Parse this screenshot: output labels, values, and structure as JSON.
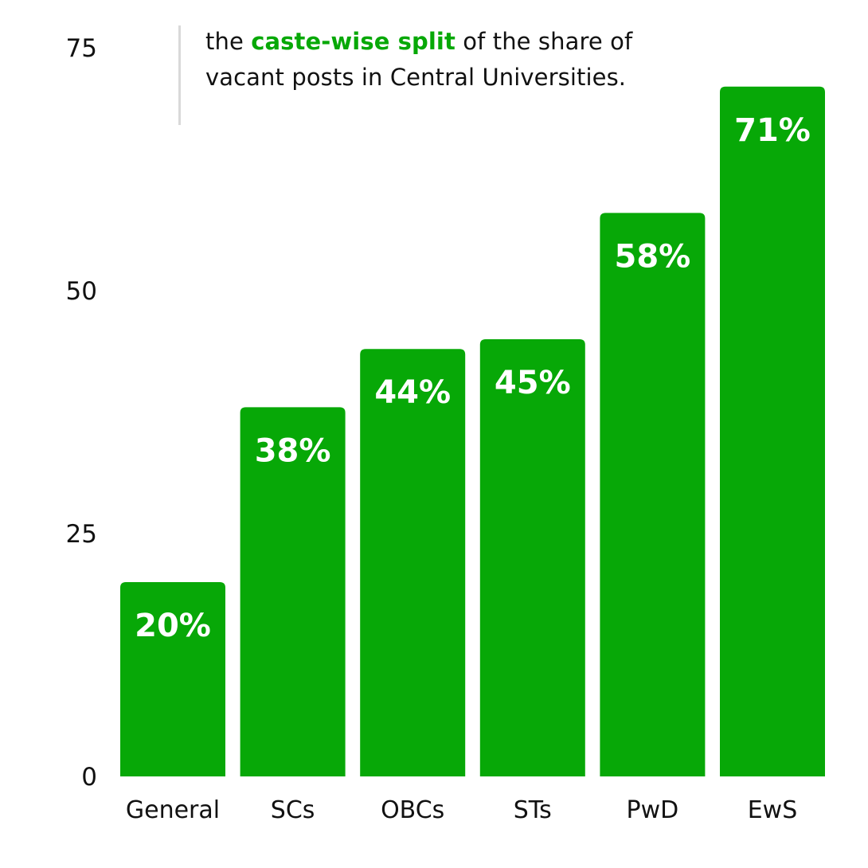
{
  "annotation": {
    "prefix": "the ",
    "highlight": "caste-wise split",
    "suffix": " of the share of vacant posts in Central Universities."
  },
  "colors": {
    "bar": "#07a807",
    "highlight": "#07a807",
    "bar_label": "#ffffff",
    "text": "#111111",
    "rule": "#d9d9d9"
  },
  "chart_data": {
    "type": "bar",
    "title": "the caste-wise split of the share of vacant posts in Central Universities.",
    "categories": [
      "General",
      "SCs",
      "OBCs",
      "STs",
      "PwD",
      "EwS"
    ],
    "values": [
      20,
      38,
      44,
      45,
      58,
      71
    ],
    "data_labels": [
      "20%",
      "38%",
      "44%",
      "45%",
      "58%",
      "71%"
    ],
    "y_ticks": [
      0,
      25,
      50,
      75
    ],
    "y_tick_labels": [
      "0",
      "25",
      "50",
      "75"
    ],
    "ylim": [
      0,
      75
    ],
    "xlabel": "",
    "ylabel": "",
    "grid": false,
    "legend": "none"
  }
}
